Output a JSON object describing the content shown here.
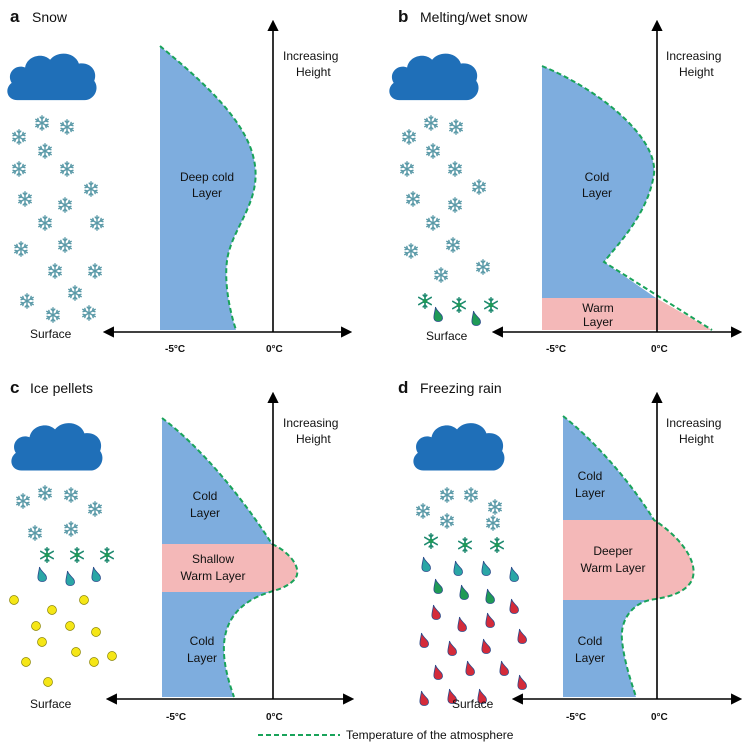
{
  "panels": [
    {
      "letter": "a",
      "title": "Snow",
      "axis_label": [
        "Increasing",
        "Height"
      ],
      "surface": "Surface",
      "tick_cold": "-5°C",
      "tick_zero": "0°C",
      "layers": [
        {
          "kind": "cold",
          "lines": [
            "Deep cold",
            "Layer"
          ]
        }
      ],
      "precip": "snow"
    },
    {
      "letter": "b",
      "title": "Melting/wet snow",
      "axis_label": [
        "Increasing",
        "Height"
      ],
      "surface": "Surface",
      "tick_cold": "-5°C",
      "tick_zero": "0°C",
      "layers": [
        {
          "kind": "cold",
          "lines": [
            "Cold",
            "Layer"
          ]
        },
        {
          "kind": "warm",
          "lines": [
            "Warm",
            "Layer"
          ]
        }
      ],
      "precip": "wet-snow"
    },
    {
      "letter": "c",
      "title": "Ice pellets",
      "axis_label": [
        "Increasing",
        "Height"
      ],
      "surface": "Surface",
      "tick_cold": "-5°C",
      "tick_zero": "0°C",
      "layers": [
        {
          "kind": "cold",
          "lines": [
            "Cold",
            "Layer"
          ]
        },
        {
          "kind": "warm",
          "lines": [
            "Shallow",
            "Warm Layer"
          ]
        },
        {
          "kind": "cold",
          "lines": [
            "Cold",
            "Layer"
          ]
        }
      ],
      "precip": "ice-pellets"
    },
    {
      "letter": "d",
      "title": "Freezing rain",
      "axis_label": [
        "Increasing",
        "Height"
      ],
      "surface": "Surface",
      "tick_cold": "-5°C",
      "tick_zero": "0°C",
      "layers": [
        {
          "kind": "cold",
          "lines": [
            "Cold",
            "Layer"
          ]
        },
        {
          "kind": "warm",
          "lines": [
            "Deeper",
            "Warm Layer"
          ]
        },
        {
          "kind": "cold",
          "lines": [
            "Cold",
            "Layer"
          ]
        }
      ],
      "precip": "freezing-rain"
    }
  ],
  "legend": {
    "label": "Temperature of the atmosphere"
  },
  "colors": {
    "cold": "#7eadde",
    "warm": "#f4b8b8",
    "cloud": "#1f6fb8",
    "snowflake": "#5b9aa8",
    "temp_line": "#19a35a",
    "ice_pellet": "#f5e616",
    "raindrop_green": "#1f9a56",
    "raindrop_teal": "#2aa6a6",
    "raindrop_red": "#d42b3a",
    "axis": "#000000"
  },
  "icons": [
    "cloud-icon",
    "snowflake-icon",
    "raindrop-icon",
    "ice-pellet-icon",
    "wet-snowflake-icon"
  ]
}
